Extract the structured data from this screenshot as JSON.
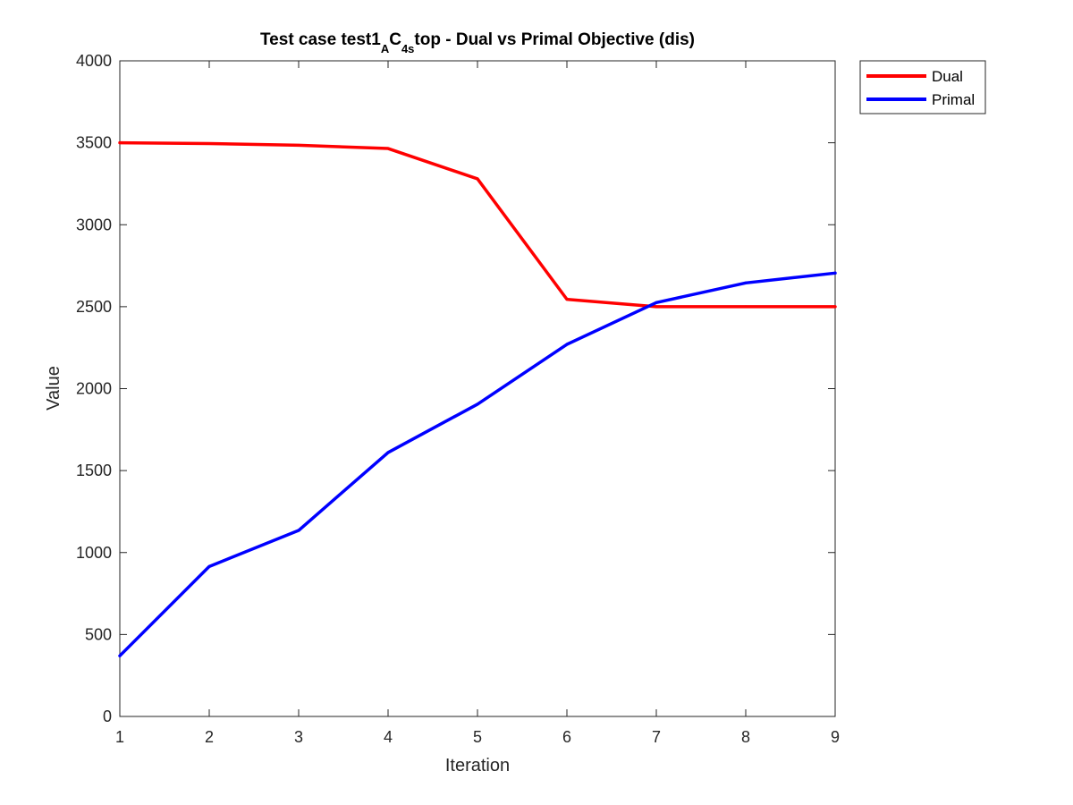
{
  "chart_data": {
    "type": "line",
    "title": {
      "prefix": "Test case test1",
      "sub_a": "A",
      "mid": "C",
      "sub_b": "4s",
      "suffix": "top - Dual vs Primal Objective (dis)"
    },
    "xlabel": "Iteration",
    "ylabel": "Value",
    "xlim": [
      1,
      9
    ],
    "ylim": [
      0,
      4000
    ],
    "x_ticks": [
      1,
      2,
      3,
      4,
      5,
      6,
      7,
      8,
      9
    ],
    "y_ticks": [
      0,
      500,
      1000,
      1500,
      2000,
      2500,
      3000,
      3500,
      4000
    ],
    "x": [
      1,
      2,
      3,
      4,
      5,
      6,
      7,
      8,
      9
    ],
    "series": [
      {
        "name": "Dual",
        "color": "#ff0000",
        "values": [
          3500,
          3495,
          3485,
          3465,
          3280,
          2545,
          2500,
          2500,
          2500
        ]
      },
      {
        "name": "Primal",
        "color": "#0000ff",
        "values": [
          370,
          915,
          1135,
          1610,
          1905,
          2270,
          2525,
          2645,
          2705
        ]
      }
    ],
    "grid": false,
    "legend_position": "outside-top-right"
  }
}
